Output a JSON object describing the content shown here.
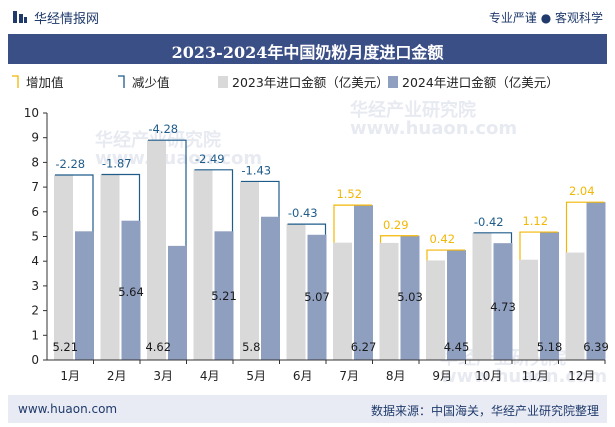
{
  "header": {
    "brand": "华经情报网",
    "tagline": "专业严谨 ● 客观科学"
  },
  "footer": {
    "website": "www.huaon.com",
    "source": "数据来源：中国海关，华经产业研究院整理"
  },
  "watermark": {
    "cn": "华经产业研究院",
    "url": "www.huaon.com"
  },
  "colors": {
    "increase": "#f2b705",
    "decrease": "#1f5c8a",
    "bar2023": "#d9d9d9",
    "bar2024": "#8f9fc0",
    "header_blue": "#3b4f87"
  },
  "chart_data": {
    "type": "bar",
    "title": "2023-2024年中国奶粉月度进口金额",
    "legend": [
      "增加值",
      "减少值",
      "2023年进口金额（亿美元）",
      "2024年进口金额（亿美元）"
    ],
    "legend_position": "top-left",
    "categories": [
      "1月",
      "2月",
      "3月",
      "4月",
      "5月",
      "6月",
      "7月",
      "8月",
      "9月",
      "10月",
      "11月",
      "12月"
    ],
    "ylim": [
      0,
      10
    ],
    "yticks": [
      0,
      1,
      2,
      3,
      4,
      5,
      6,
      7,
      8,
      9,
      10
    ],
    "grid": false,
    "series": [
      {
        "name": "2023年进口金额（亿美元）",
        "values": [
          7.49,
          7.51,
          8.9,
          7.7,
          7.23,
          5.5,
          4.75,
          4.74,
          4.03,
          5.15,
          4.06,
          4.35
        ]
      },
      {
        "name": "2024年进口金额（亿美元）",
        "values": [
          5.21,
          5.64,
          4.62,
          5.21,
          5.8,
          5.07,
          6.27,
          5.03,
          4.45,
          4.73,
          5.18,
          6.39
        ]
      }
    ],
    "change": [
      -2.28,
      -1.87,
      -4.28,
      -2.49,
      -1.43,
      -0.43,
      1.52,
      0.29,
      0.42,
      -0.42,
      1.12,
      2.04
    ],
    "change_labels": [
      "-2.28",
      "-1.87",
      "-4.28",
      "-2.49",
      "-1.43",
      "-0.43",
      "1.52",
      "0.29",
      "0.42",
      "-0.42",
      "1.12",
      "2.04"
    ],
    "value2024_labels": [
      "5.21",
      "5.64",
      "4.62",
      "5.21",
      "5.8",
      "5.07",
      "6.27",
      "5.03",
      "4.45",
      "4.73",
      "5.18",
      "6.39"
    ]
  }
}
